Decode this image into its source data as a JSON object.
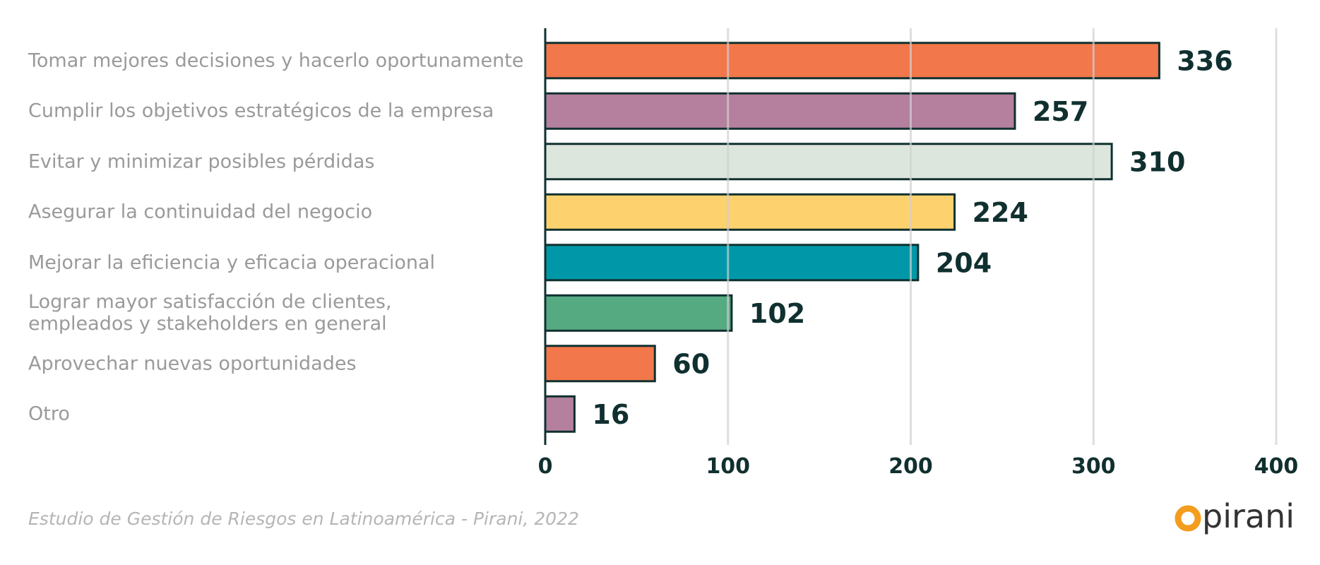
{
  "chart_data": {
    "type": "bar",
    "orientation": "horizontal",
    "categories": [
      "Tomar mejores decisiones y hacerlo oportunamente",
      "Cumplir los objetivos estratégicos de la empresa",
      "Evitar y minimizar posibles pérdidas",
      "Asegurar la continuidad del negocio",
      "Mejorar la eficiencia y eficacia operacional",
      "Lograr mayor satisfacción de clientes,\nempleados y stakeholders en general",
      "Aprovechar nuevas oportunidades",
      "Otro"
    ],
    "values": [
      336,
      257,
      310,
      224,
      204,
      102,
      60,
      16
    ],
    "colors": [
      "#f2774a",
      "#b4809e",
      "#dde6dd",
      "#fed16f",
      "#0098a8",
      "#56aa82",
      "#f2774a",
      "#b4809e"
    ],
    "xlim": [
      0,
      400
    ],
    "xticks": [
      0,
      100,
      200,
      300,
      400
    ],
    "grid": true,
    "source": "Estudio de Gestión de Riesgos en Latinoamérica - Pirani, 2022",
    "logo": "pirani"
  }
}
